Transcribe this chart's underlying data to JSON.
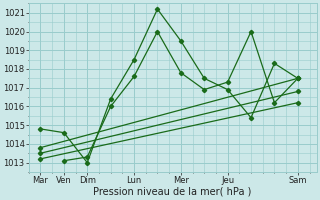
{
  "xlabel": "Pression niveau de la mer( hPa )",
  "xlabels": [
    "Mar",
    "Ven",
    "Dim",
    "Lun",
    "Mer",
    "Jeu",
    "Sam"
  ],
  "xtick_positions": [
    0,
    1,
    2,
    4,
    6,
    8,
    11
  ],
  "xlim": [
    -0.5,
    11.8
  ],
  "ylim": [
    1012.5,
    1021.5
  ],
  "yticks": [
    1013,
    1014,
    1015,
    1016,
    1017,
    1018,
    1019,
    1020,
    1021
  ],
  "bg_color": "#cce8e8",
  "grid_color": "#99cccc",
  "line_color": "#1a6b1a",
  "lines": [
    {
      "x": [
        0,
        1,
        2,
        3,
        4,
        5,
        6,
        7,
        8,
        9,
        10,
        11
      ],
      "y": [
        1014.8,
        1014.6,
        1013.0,
        1016.4,
        1018.5,
        1021.2,
        1019.5,
        1017.5,
        1016.9,
        1015.4,
        1018.3,
        1017.5
      ]
    },
    {
      "x": [
        0,
        11
      ],
      "y": [
        1013.8,
        1017.5
      ]
    },
    {
      "x": [
        0,
        11
      ],
      "y": [
        1013.5,
        1016.8
      ]
    },
    {
      "x": [
        0,
        11
      ],
      "y": [
        1013.2,
        1016.2
      ]
    },
    {
      "x": [
        1,
        2,
        3,
        4,
        5,
        6,
        7,
        8,
        9,
        10,
        11
      ],
      "y": [
        1013.1,
        1013.3,
        1016.0,
        1017.6,
        1020.0,
        1017.8,
        1016.9,
        1017.3,
        1020.0,
        1016.2,
        1017.5
      ]
    }
  ]
}
